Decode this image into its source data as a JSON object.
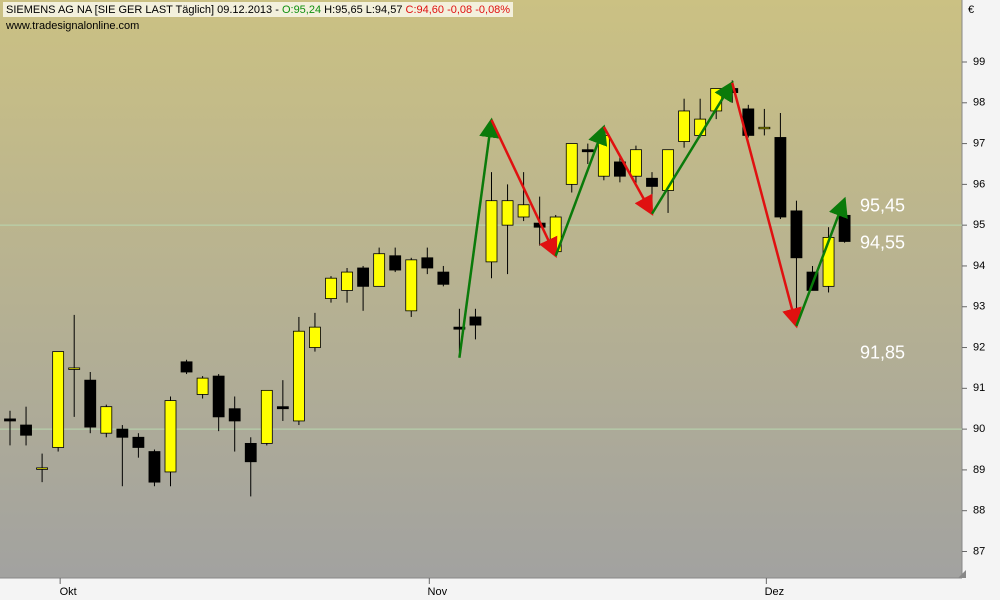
{
  "chart_data": {
    "type": "candlestick",
    "header": {
      "name": "SIEMENS AG NA [SIE GER LAST Täglich] 09.12.2013 -",
      "open": "O:95,24",
      "high": "H:95,65",
      "low": "L:94,57",
      "close": "C:94,60 -0,08 -0,08%"
    },
    "watermark": "www.tradesignalonline.com",
    "currency": "€",
    "categories": [
      null,
      null,
      null,
      "Okt",
      null,
      null,
      null,
      null,
      null,
      null,
      null,
      null,
      null,
      null,
      null,
      null,
      null,
      null,
      null,
      null,
      null,
      null,
      null,
      null,
      null,
      null,
      "Nov",
      null,
      null,
      null,
      null,
      null,
      null,
      null,
      null,
      null,
      null,
      null,
      null,
      null,
      null,
      null,
      null,
      null,
      null,
      null,
      null,
      "Dez",
      null,
      null,
      null,
      null,
      null
    ],
    "open": [
      90.25,
      90.1,
      89.05,
      89.55,
      91.5,
      91.2,
      89.9,
      90.0,
      89.8,
      89.45,
      88.95,
      91.65,
      90.85,
      91.3,
      90.5,
      89.65,
      89.65,
      90.55,
      90.2,
      92.0,
      93.2,
      93.4,
      93.95,
      93.5,
      94.25,
      92.9,
      94.2,
      93.85,
      92.5,
      92.75,
      94.1,
      95.0,
      95.2,
      95.05,
      94.35,
      96.0,
      96.85,
      96.2,
      96.55,
      96.2,
      96.15,
      95.85,
      97.05,
      97.2,
      97.8,
      98.35,
      97.85,
      97.4,
      97.15,
      95.35,
      93.85,
      93.5,
      95.24
    ],
    "high": [
      90.45,
      90.55,
      89.4,
      91.9,
      92.8,
      91.4,
      90.6,
      90.1,
      89.9,
      89.5,
      90.8,
      91.7,
      91.3,
      91.35,
      90.8,
      89.8,
      90.95,
      91.2,
      92.75,
      92.85,
      93.75,
      93.95,
      94.0,
      94.45,
      94.45,
      94.2,
      94.45,
      94.0,
      92.95,
      92.95,
      96.3,
      96.0,
      96.3,
      95.7,
      95.25,
      97.0,
      97.0,
      97.4,
      96.7,
      96.95,
      96.3,
      96.85,
      98.1,
      98.1,
      98.35,
      98.55,
      97.95,
      97.85,
      97.75,
      95.6,
      94.0,
      94.95,
      95.65
    ],
    "low": [
      89.6,
      89.6,
      88.7,
      89.45,
      90.3,
      89.9,
      89.8,
      88.6,
      89.3,
      88.6,
      88.6,
      91.35,
      90.75,
      89.95,
      89.45,
      88.35,
      89.6,
      90.2,
      90.1,
      91.9,
      93.1,
      93.1,
      92.9,
      93.5,
      93.85,
      92.75,
      93.8,
      93.5,
      91.9,
      92.2,
      93.7,
      93.8,
      95.1,
      94.5,
      94.3,
      95.8,
      96.5,
      96.1,
      96.05,
      96.0,
      95.3,
      95.3,
      96.9,
      97.15,
      97.6,
      98.0,
      97.15,
      97.2,
      95.15,
      92.95,
      93.4,
      93.35,
      94.57
    ],
    "close": [
      90.2,
      89.85,
      89.05,
      91.9,
      91.5,
      90.05,
      90.55,
      89.8,
      89.55,
      88.7,
      90.7,
      91.4,
      91.25,
      90.3,
      90.2,
      89.2,
      90.95,
      90.5,
      92.4,
      92.5,
      93.7,
      93.85,
      93.5,
      94.3,
      93.9,
      94.15,
      93.95,
      93.55,
      92.45,
      92.55,
      95.6,
      95.6,
      95.5,
      94.95,
      95.2,
      97.0,
      96.8,
      97.2,
      96.2,
      96.85,
      95.95,
      96.85,
      97.8,
      97.6,
      98.35,
      98.25,
      97.2,
      97.4,
      95.2,
      94.2,
      93.4,
      94.7,
      94.6
    ],
    "up_color": "#ffff00",
    "down_color": "#000000",
    "trend": {
      "x": [
        28,
        30,
        34,
        37,
        40,
        45,
        49,
        52
      ],
      "values": [
        91.75,
        97.58,
        94.25,
        97.41,
        95.28,
        98.49,
        92.53,
        95.64
      ],
      "up_color": "#0a7a0a",
      "down_color": "#e01010"
    },
    "annotations": [
      {
        "value": 95.45,
        "label": "95,45"
      },
      {
        "value": 94.55,
        "label": "94,55"
      },
      {
        "value": 91.85,
        "label": "91,85"
      }
    ],
    "hlines": [
      95,
      90
    ],
    "ylim": [
      86.35,
      100.52
    ],
    "yticks": [
      87,
      88,
      89,
      90,
      91,
      92,
      93,
      94,
      95,
      96,
      97,
      98,
      99
    ]
  }
}
